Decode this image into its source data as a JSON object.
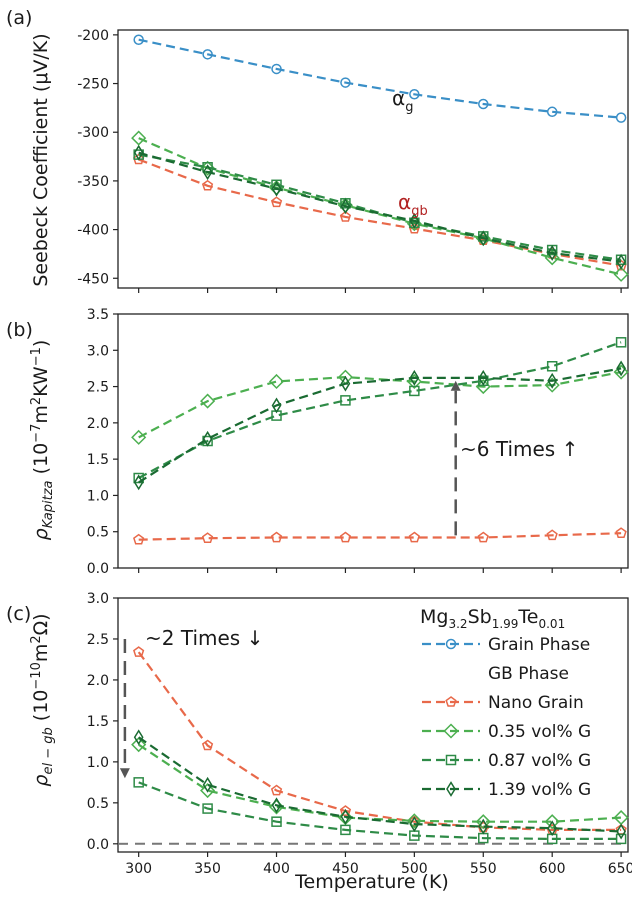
{
  "colors": {
    "grain": "#3a8fc7",
    "nano": "#e8694a",
    "g035": "#4caf50",
    "g087": "#2e8b47",
    "g139": "#1a6b32",
    "zero_line": "#777777",
    "annotation_dark": "#555555",
    "alpha_gb_label": "#b22222"
  },
  "x": [
    300,
    350,
    400,
    450,
    500,
    550,
    600,
    650
  ],
  "xlabel": "Temperature (K)",
  "xticks": [
    "300",
    "350",
    "400",
    "450",
    "500",
    "550",
    "600",
    "650"
  ],
  "chart_data": [
    {
      "type": "line",
      "panel_label": "(a)",
      "ylabel": "Seebeck Coefficient (μV/K)",
      "ylim": [
        -460,
        -195
      ],
      "yticks": [
        "-200",
        "-250",
        "-300",
        "-350",
        "-400",
        "-450"
      ],
      "ytick_values": [
        -200,
        -250,
        -300,
        -350,
        -400,
        -450
      ],
      "series": [
        {
          "name": "Grain Phase",
          "key": "grain",
          "marker": "circle",
          "values": [
            -205,
            -220,
            -235,
            -249,
            -261,
            -271,
            -279,
            -285
          ]
        },
        {
          "name": "Nano Grain",
          "key": "nano",
          "marker": "pentagon",
          "values": [
            -328,
            -355,
            -372,
            -387,
            -399,
            -411,
            -425,
            -437
          ]
        },
        {
          "name": "0.35 vol% G",
          "key": "g035",
          "marker": "diamond",
          "values": [
            -306,
            -337,
            -357,
            -375,
            -394,
            -409,
            -429,
            -446
          ]
        },
        {
          "name": "0.87 vol% G",
          "key": "g087",
          "marker": "square",
          "values": [
            -323,
            -336,
            -354,
            -373,
            -393,
            -407,
            -421,
            -431
          ]
        },
        {
          "name": "1.39 vol% G",
          "key": "g139",
          "marker": "thin_diamond",
          "values": [
            -321,
            -341,
            -358,
            -376,
            -391,
            -409,
            -424,
            -433
          ]
        }
      ],
      "annotations": {
        "alpha_g": {
          "main": "α",
          "sub": "g"
        },
        "alpha_gb": {
          "main": "α",
          "sub": "gb"
        }
      }
    },
    {
      "type": "line",
      "panel_label": "(b)",
      "ylabel_main": "ρ",
      "ylabel_sub": "Kapitza",
      "ylabel_rest": " (10",
      "ylabel_sup1": "−7",
      "ylabel_mid": "m",
      "ylabel_sup2": "2",
      "ylabel_mid2": "KW",
      "ylabel_sup3": "−1",
      "ylabel_end": ")",
      "ylim": [
        0.0,
        3.5
      ],
      "yticks": [
        "0.0",
        "0.5",
        "1.0",
        "1.5",
        "2.0",
        "2.5",
        "3.0",
        "3.5"
      ],
      "ytick_values": [
        0.0,
        0.5,
        1.0,
        1.5,
        2.0,
        2.5,
        3.0,
        3.5
      ],
      "series": [
        {
          "name": "Nano Grain",
          "key": "nano",
          "marker": "pentagon",
          "values": [
            0.39,
            0.41,
            0.42,
            0.42,
            0.42,
            0.42,
            0.45,
            0.48
          ]
        },
        {
          "name": "0.35 vol% G",
          "key": "g035",
          "marker": "diamond",
          "values": [
            1.8,
            2.3,
            2.57,
            2.63,
            2.57,
            2.5,
            2.52,
            2.7
          ]
        },
        {
          "name": "0.87 vol% G",
          "key": "g087",
          "marker": "square",
          "values": [
            1.24,
            1.75,
            2.1,
            2.31,
            2.44,
            2.58,
            2.78,
            3.11
          ]
        },
        {
          "name": "1.39 vol% G",
          "key": "g139",
          "marker": "thin_diamond",
          "values": [
            1.18,
            1.78,
            2.24,
            2.54,
            2.62,
            2.62,
            2.58,
            2.75
          ]
        }
      ],
      "annotation_text": "~6 Times ↑",
      "arrow": {
        "x": 530,
        "from": 0.45,
        "to": 2.58
      }
    },
    {
      "type": "line",
      "panel_label": "(c)",
      "ylabel_main": "ρ",
      "ylabel_sub": "el − gb",
      "ylabel_rest": " (10",
      "ylabel_sup1": "−10",
      "ylabel_mid": "m",
      "ylabel_sup2": "2",
      "ylabel_end": "Ω)",
      "ylim": [
        -0.1,
        3.0
      ],
      "yticks": [
        "0.0",
        "0.5",
        "1.0",
        "1.5",
        "2.0",
        "2.5",
        "3.0"
      ],
      "ytick_values": [
        0.0,
        0.5,
        1.0,
        1.5,
        2.0,
        2.5,
        3.0
      ],
      "series": [
        {
          "name": "Nano Grain",
          "key": "nano",
          "marker": "pentagon",
          "values": [
            2.34,
            1.2,
            0.65,
            0.4,
            0.27,
            0.2,
            0.17,
            0.17
          ]
        },
        {
          "name": "0.35 vol% G",
          "key": "g035",
          "marker": "diamond",
          "values": [
            1.21,
            0.65,
            0.45,
            0.32,
            0.28,
            0.27,
            0.27,
            0.32
          ]
        },
        {
          "name": "0.87 vol% G",
          "key": "g087",
          "marker": "square",
          "values": [
            0.75,
            0.43,
            0.27,
            0.17,
            0.1,
            0.07,
            0.06,
            0.06
          ]
        },
        {
          "name": "1.39 vol% G",
          "key": "g139",
          "marker": "thin_diamond",
          "values": [
            1.3,
            0.72,
            0.47,
            0.33,
            0.24,
            0.21,
            0.19,
            0.15
          ]
        }
      ],
      "annotation_text": "~2 Times ↓",
      "arrow": {
        "x": 290,
        "from": 2.5,
        "to": 0.8
      },
      "zero_line": 0.0
    }
  ],
  "legend": {
    "title_main": "Mg",
    "title_sub1": "3.2",
    "title_mid": "Sb",
    "title_sub2": "1.99",
    "title_mid2": "Te",
    "title_sub3": "0.01",
    "entries": [
      {
        "label": "Grain Phase",
        "key": "grain",
        "marker": "circle"
      },
      {
        "label": "GB Phase",
        "key": null,
        "marker": null
      },
      {
        "label": "Nano Grain",
        "key": "nano",
        "marker": "pentagon"
      },
      {
        "label": "0.35 vol% G",
        "key": "g035",
        "marker": "diamond"
      },
      {
        "label": "0.87 vol% G",
        "key": "g087",
        "marker": "square"
      },
      {
        "label": "1.39 vol% G",
        "key": "g139",
        "marker": "thin_diamond"
      }
    ]
  }
}
